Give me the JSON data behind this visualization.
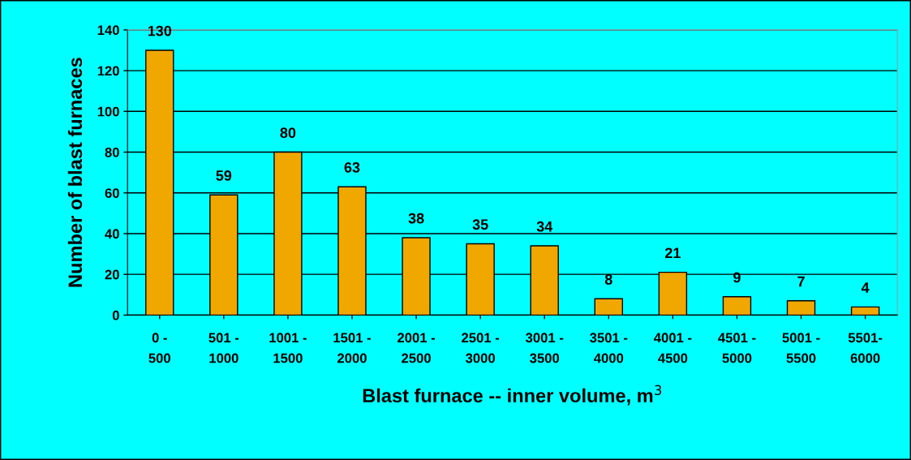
{
  "chart_data": {
    "type": "bar",
    "xlabel": "Blast furnace -- inner volume, m$^{3}$",
    "ylabel": "Number of blast furnaces",
    "categories": [
      "0 -\n500",
      "501 -\n1000",
      "1001 -\n1500",
      "1501 -\n2000",
      "2001 -\n2500",
      "2501 -\n3000",
      "3001 -\n3500",
      "3501 -\n4000",
      "4001 -\n4500",
      "4501 -\n5000",
      "5001 -\n5500",
      "5501-\n6000"
    ],
    "values": [
      130,
      59,
      80,
      63,
      38,
      35,
      34,
      8,
      21,
      9,
      7,
      4
    ],
    "color": "#f0a800",
    "ylim": [
      0,
      140
    ],
    "yticks": [
      0,
      20,
      40,
      60,
      80,
      100,
      120,
      140
    ],
    "grid": "y",
    "data_labels": true,
    "legend": false
  }
}
